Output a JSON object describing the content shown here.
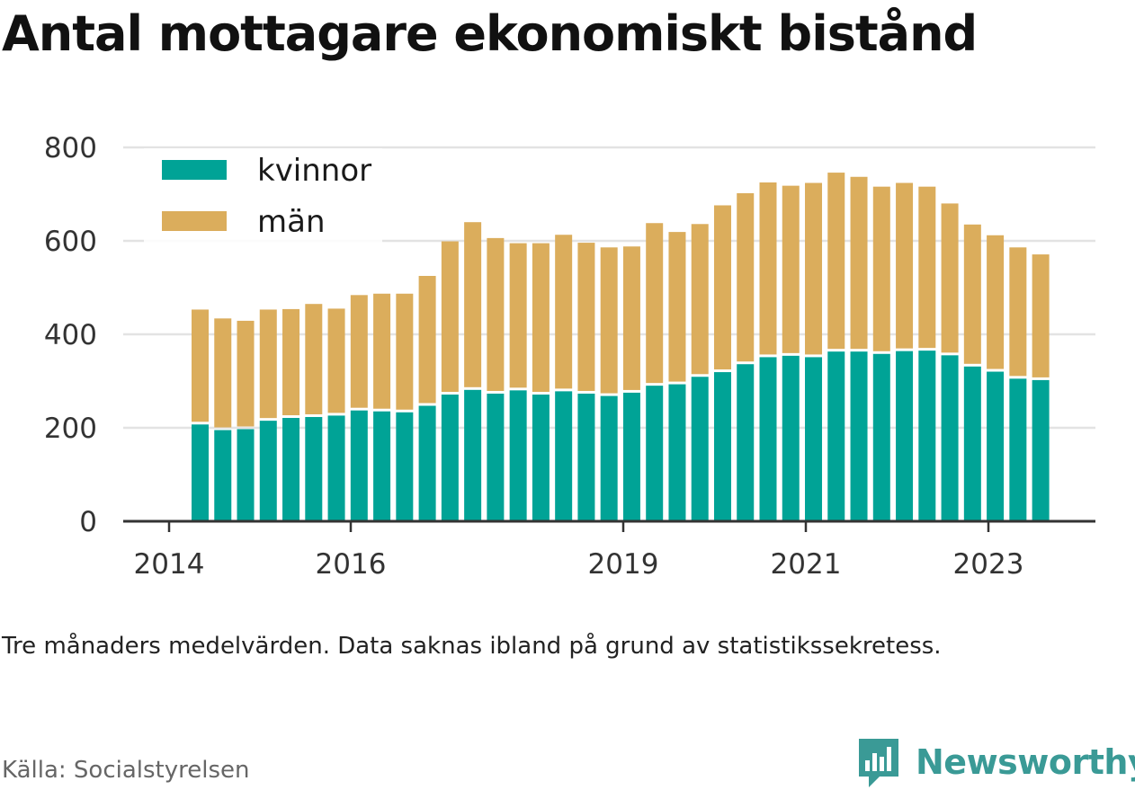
{
  "title": "Antal mottagare ekonomiskt bistånd",
  "note": "Tre månaders medelvärden. Data saknas ibland på grund av statistikssekretess.",
  "source": "Källa: Socialstyrelsen",
  "brand": "Newsworthy",
  "colors": {
    "kvinnor": "#00a396",
    "man": "#dbad5c",
    "grid": "#e3e3e3",
    "axis": "#333333",
    "brand": "#3a9a96"
  },
  "chart_data": {
    "type": "bar",
    "stacked": true,
    "y_ticks": [
      0,
      200,
      400,
      600,
      800
    ],
    "ylim": [
      0,
      800
    ],
    "x_ticks": [
      "2014",
      "2016",
      "2019",
      "2021",
      "2023"
    ],
    "legend": {
      "position": "top-left",
      "entries": [
        "kvinnor",
        "män"
      ]
    },
    "grid": true,
    "series": [
      {
        "name": "kvinnor",
        "values": [
          210,
          198,
          200,
          218,
          224,
          226,
          229,
          240,
          238,
          236,
          250,
          274,
          284,
          276,
          283,
          274,
          281,
          276,
          271,
          278,
          293,
          296,
          312,
          322,
          339,
          354,
          357,
          354,
          366,
          366,
          361,
          367,
          368,
          358,
          334,
          323,
          308,
          305
        ]
      },
      {
        "name": "män",
        "values": [
          243,
          236,
          229,
          235,
          230,
          239,
          226,
          244,
          249,
          251,
          275,
          325,
          356,
          330,
          312,
          321,
          332,
          320,
          315,
          310,
          345,
          323,
          324,
          354,
          363,
          371,
          361,
          370,
          380,
          371,
          355,
          357,
          348,
          322,
          301,
          289,
          278,
          266
        ]
      }
    ]
  }
}
